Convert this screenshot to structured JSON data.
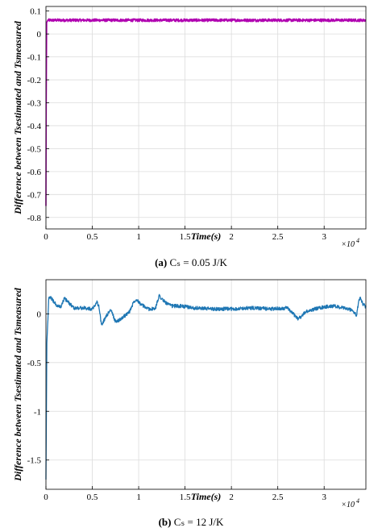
{
  "chart_data": [
    {
      "type": "line",
      "panel": "a",
      "caption_letter": "(a)",
      "caption_text": "Cₛ = 0.05 J/K",
      "xlabel": "Time(s)",
      "ylabel": "Difference between Tsestimated and Tsmeasured",
      "x_exponent_label": "×10",
      "x_exponent_power": "4",
      "xlim": [
        0,
        3.45
      ],
      "ylim": [
        -0.85,
        0.12
      ],
      "xticks": [
        0,
        0.5,
        1,
        1.5,
        2,
        2.5,
        3
      ],
      "xtick_labels": [
        "0",
        "0.5",
        "1",
        "1.5",
        "2",
        "2.5",
        "3"
      ],
      "yticks": [
        0.1,
        0,
        -0.1,
        -0.2,
        -0.3,
        -0.4,
        -0.5,
        -0.6,
        -0.7,
        -0.8
      ],
      "ytick_labels": [
        "0.1",
        "0",
        "-0.1",
        "-0.2",
        "-0.3",
        "-0.4",
        "-0.5",
        "-0.6",
        "-0.7",
        "-0.8"
      ],
      "grid": true,
      "series": [
        {
          "color": "#b000b0",
          "x": [
            0,
            0.003,
            0.008,
            0.02,
            0.5,
            1,
            1.5,
            2,
            2.5,
            3,
            3.45
          ],
          "y": [
            -0.75,
            -0.3,
            0.05,
            0.06,
            0.06,
            0.06,
            0.06,
            0.06,
            0.06,
            0.06,
            0.06
          ],
          "noise_amplitude": 0.006
        }
      ]
    },
    {
      "type": "line",
      "panel": "b",
      "caption_letter": "(b)",
      "caption_text": "Cₛ = 12 J/K",
      "xlabel": "Time(s)",
      "ylabel": "Difference between Tsestimated and Tsmeasured",
      "x_exponent_label": "×10",
      "x_exponent_power": "4",
      "xlim": [
        0,
        3.45
      ],
      "ylim": [
        -1.8,
        0.35
      ],
      "xticks": [
        0,
        0.5,
        1,
        1.5,
        2,
        2.5,
        3
      ],
      "xtick_labels": [
        "0",
        "0.5",
        "1",
        "1.5",
        "2",
        "2.5",
        "3"
      ],
      "yticks": [
        0,
        -0.5,
        -1,
        -1.5
      ],
      "ytick_labels": [
        "0",
        "-0.5",
        "-1",
        "-1.5"
      ],
      "grid": true,
      "series": [
        {
          "color": "#1f77b4",
          "x": [
            0,
            0.01,
            0.03,
            0.05,
            0.08,
            0.12,
            0.16,
            0.2,
            0.23,
            0.3,
            0.4,
            0.5,
            0.55,
            0.57,
            0.6,
            0.65,
            0.7,
            0.75,
            0.8,
            0.85,
            0.9,
            0.95,
            0.98,
            1.02,
            1.1,
            1.18,
            1.22,
            1.26,
            1.3,
            1.35,
            1.45,
            1.6,
            1.8,
            2.0,
            2.2,
            2.45,
            2.6,
            2.72,
            2.75,
            2.8,
            2.9,
            3.0,
            3.1,
            3.2,
            3.3,
            3.35,
            3.37,
            3.39,
            3.42,
            3.45
          ],
          "y": [
            -1.7,
            -0.3,
            0.15,
            0.17,
            0.13,
            0.08,
            0.07,
            0.16,
            0.13,
            0.06,
            0.06,
            0.05,
            0.12,
            0.08,
            -0.12,
            -0.02,
            0.04,
            -0.08,
            -0.06,
            -0.02,
            0.02,
            0.13,
            0.15,
            0.1,
            0.05,
            0.05,
            0.19,
            0.14,
            0.11,
            0.08,
            0.08,
            0.06,
            0.05,
            0.05,
            0.06,
            0.05,
            0.06,
            -0.05,
            -0.03,
            0.02,
            0.05,
            0.07,
            0.08,
            0.06,
            0.04,
            -0.02,
            0.12,
            0.16,
            0.1,
            0.07
          ],
          "noise_amplitude": 0.018
        }
      ]
    }
  ]
}
